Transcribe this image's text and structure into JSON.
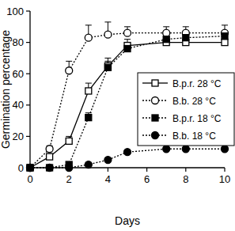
{
  "chart_data": {
    "type": "line",
    "x_label": "Days",
    "y_label": "Germination percentage",
    "x": [
      0,
      1,
      2,
      3,
      4,
      5,
      7,
      8,
      10
    ],
    "xlim": [
      0,
      10
    ],
    "xticks": [
      0,
      2,
      4,
      6,
      8,
      10
    ],
    "ylim": [
      0,
      100
    ],
    "yticks": [
      0,
      20,
      40,
      60,
      80,
      100
    ],
    "grid": false,
    "legend": "right",
    "series": [
      {
        "name": "B.p.r. 28 °C",
        "color": "#000000",
        "marker": "square-open",
        "line_style": "solid",
        "values": [
          0,
          7,
          17,
          49,
          65,
          78,
          80,
          80,
          80
        ],
        "errors": [
          0,
          1,
          3,
          5,
          5,
          4,
          3,
          3,
          3
        ]
      },
      {
        "name": "B.b. 28 °C",
        "color": "#000000",
        "marker": "circle-open",
        "line_style": "dotted",
        "values": [
          0,
          12,
          62,
          83,
          85,
          86,
          86,
          86,
          86
        ],
        "errors": [
          0,
          2,
          6,
          8,
          8,
          4,
          4,
          4,
          5
        ]
      },
      {
        "name": "B.p.r. 18 °C",
        "color": "#000000",
        "marker": "square",
        "line_style": "dotted",
        "values": [
          0,
          0,
          2,
          32,
          64,
          76,
          82,
          83,
          84
        ],
        "errors": [
          0,
          0,
          1,
          3,
          4,
          4,
          3,
          3,
          3
        ]
      },
      {
        "name": "B.b. 18 °C",
        "color": "#000000",
        "marker": "circle",
        "line_style": "dotted",
        "values": [
          0,
          0,
          0,
          2,
          5,
          10,
          12,
          12,
          12
        ],
        "errors": [
          0,
          0,
          0,
          1,
          1,
          1,
          1,
          1,
          1
        ]
      }
    ]
  }
}
